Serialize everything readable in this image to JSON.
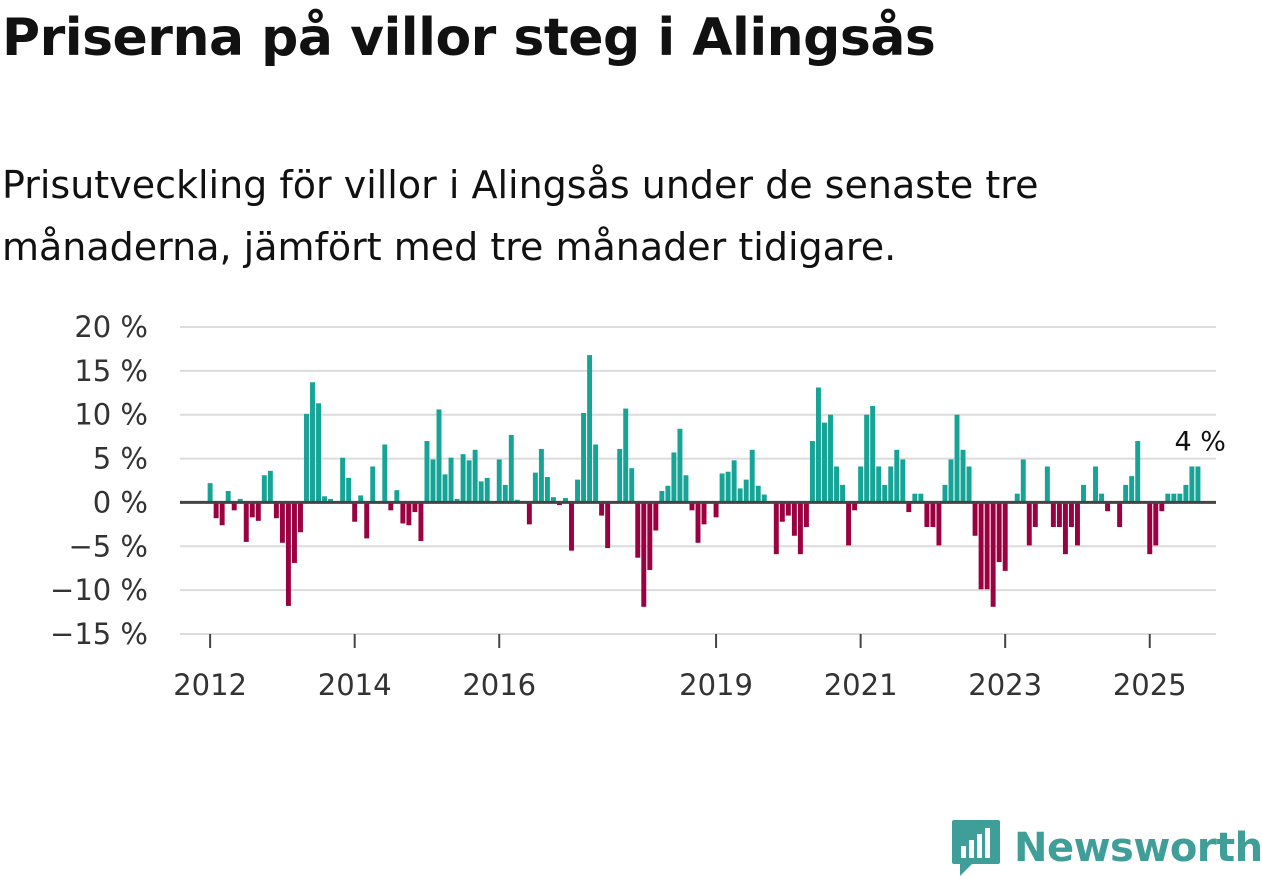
{
  "title": "Priserna på villor steg i Alingsås",
  "subtitle": "Prisutveckling för villor i Alingsås under de senaste tre månaderna, jämfört med tre månader tidigare.",
  "brand": {
    "name": "Newsworthy",
    "color": "#3f9e98",
    "icon": "newsworthy-bar-chart-icon"
  },
  "chart_data": {
    "type": "bar",
    "title": "",
    "xlabel": "",
    "ylabel": "",
    "ylim": [
      -15,
      20
    ],
    "yticks": [
      20,
      15,
      10,
      5,
      0,
      -5,
      -10,
      -15
    ],
    "ytick_labels": [
      "20 %",
      "15 %",
      "10 %",
      "5 %",
      "0 %",
      "−5 %",
      "−10 %",
      "−15 %"
    ],
    "x_start": "2011-08",
    "x_end": "2025-12",
    "xticks": [
      {
        "label": "2012",
        "date": "2012-01"
      },
      {
        "label": "2014",
        "date": "2014-01"
      },
      {
        "label": "2016",
        "date": "2016-01"
      },
      {
        "label": "2019",
        "date": "2019-01"
      },
      {
        "label": "2021",
        "date": "2021-01"
      },
      {
        "label": "2023",
        "date": "2023-01"
      },
      {
        "label": "2025",
        "date": "2025-01"
      }
    ],
    "positive_color": "#16a497",
    "negative_color": "#9b0040",
    "grid": true,
    "end_label": "4 %",
    "series_start": "2012-01",
    "values": [
      2.2,
      -1.8,
      -2.6,
      1.3,
      -0.9,
      0.4,
      -4.5,
      -1.7,
      -2.1,
      3.1,
      3.6,
      -1.8,
      -4.6,
      -11.8,
      -6.9,
      -3.4,
      10.1,
      13.7,
      11.3,
      0.7,
      0.4,
      0,
      5.1,
      2.8,
      -2.2,
      0.8,
      -4.1,
      4.1,
      0.1,
      6.6,
      -0.9,
      1.4,
      -2.4,
      -2.6,
      -1.1,
      -4.4,
      7.0,
      4.9,
      10.6,
      3.2,
      5.1,
      0.4,
      5.5,
      4.8,
      6.0,
      2.4,
      2.8,
      0.1,
      4.9,
      2.0,
      7.7,
      0.3,
      0.1,
      -2.5,
      3.4,
      6.1,
      2.9,
      0.6,
      -0.3,
      0.5,
      -5.5,
      2.6,
      10.2,
      16.8,
      6.6,
      -1.5,
      -5.2,
      0,
      6.1,
      10.7,
      3.9,
      -6.3,
      -11.9,
      -7.7,
      -3.2,
      1.3,
      1.9,
      5.7,
      8.4,
      3.1,
      -0.9,
      -4.6,
      -2.5,
      0,
      -1.7,
      3.3,
      3.5,
      4.8,
      1.6,
      2.6,
      6.0,
      1.9,
      0.9,
      0,
      -5.9,
      -2.2,
      -1.5,
      -3.8,
      -5.9,
      -2.8,
      7.0,
      13.1,
      9.1,
      10.0,
      4.1,
      2.0,
      -4.9,
      -0.9,
      4.1,
      10.0,
      11.0,
      4.1,
      2.0,
      4.1,
      6.0,
      4.9,
      -1.1,
      1.0,
      1.0,
      -2.8,
      -2.8,
      -4.9,
      2.0,
      4.9,
      10.0,
      6.0,
      4.1,
      -3.8,
      -9.9,
      -9.9,
      -11.9,
      -6.8,
      -7.8,
      0,
      1.0,
      4.9,
      -4.9,
      -2.8,
      0,
      4.1,
      -2.8,
      -2.8,
      -5.9,
      -2.8,
      -4.9,
      2.0,
      0,
      4.1,
      1.0,
      -1.0,
      0,
      -2.8,
      2.0,
      3.0,
      7.0,
      0,
      -5.9,
      -4.9,
      -1.0,
      1.0,
      1.0,
      1.0,
      2.0,
      4.1,
      4.1
    ]
  }
}
